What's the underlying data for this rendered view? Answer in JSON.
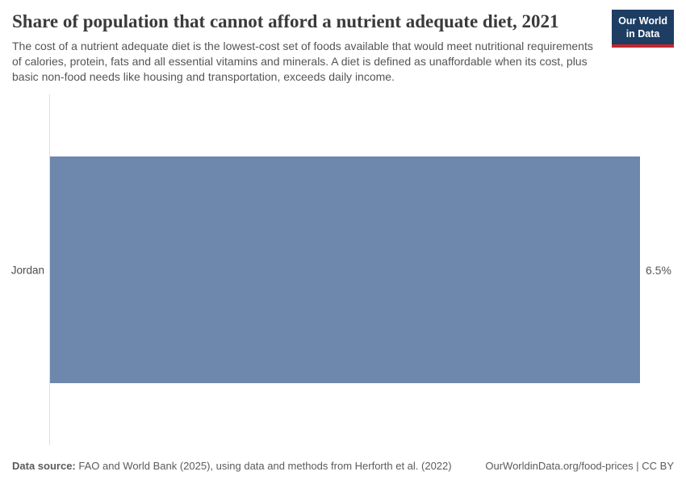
{
  "header": {
    "title": "Share of population that cannot afford a nutrient adequate diet, 2021",
    "subtitle": "The cost of a nutrient adequate diet is the lowest-cost set of foods available that would meet nutritional requirements of calories, protein, fats and all essential vitamins and minerals. A diet is defined as unaffordable when its cost, plus basic non-food needs like housing and transportation, exceeds daily income.",
    "logo": {
      "line1": "Our World",
      "line2": "in Data"
    }
  },
  "chart_data": {
    "type": "bar",
    "orientation": "horizontal",
    "title": "Share of population that cannot afford a nutrient adequate diet, 2021",
    "categories": [
      "Jordan"
    ],
    "values": [
      6.5
    ],
    "value_labels": [
      "6.5%"
    ],
    "unit": "%",
    "xlim": [
      0,
      6.5
    ],
    "grid": false,
    "legend": "none",
    "bar_color": "#6e87ac"
  },
  "colors": {
    "bar": "#6e87ac",
    "axis_line": "#dedede",
    "title_text": "#3a3a3a",
    "body_text": "#555555",
    "logo_bg": "#1d3d63",
    "logo_accent": "#c4262d"
  },
  "footer": {
    "datasource_label": "Data source:",
    "datasource_text": " FAO and World Bank (2025), using data and methods from Herforth et al. (2022)",
    "rights_text": "OurWorldinData.org/food-prices | CC BY"
  }
}
